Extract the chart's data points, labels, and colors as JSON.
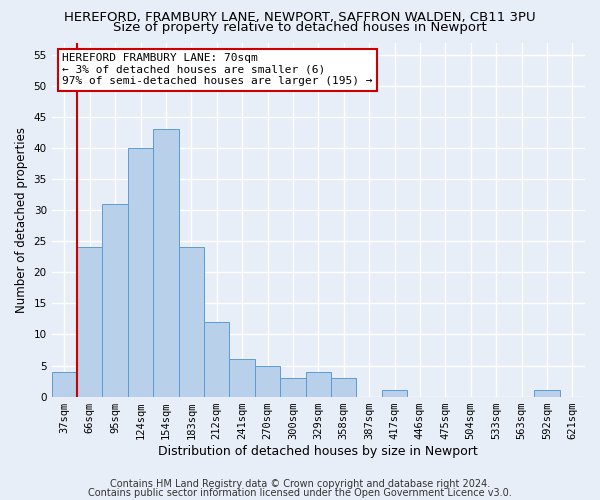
{
  "title1": "HEREFORD, FRAMBURY LANE, NEWPORT, SAFFRON WALDEN, CB11 3PU",
  "title2": "Size of property relative to detached houses in Newport",
  "xlabel": "Distribution of detached houses by size in Newport",
  "ylabel": "Number of detached properties",
  "categories": [
    "37sqm",
    "66sqm",
    "95sqm",
    "124sqm",
    "154sqm",
    "183sqm",
    "212sqm",
    "241sqm",
    "270sqm",
    "300sqm",
    "329sqm",
    "358sqm",
    "387sqm",
    "417sqm",
    "446sqm",
    "475sqm",
    "504sqm",
    "533sqm",
    "563sqm",
    "592sqm",
    "621sqm"
  ],
  "bar_values": [
    4,
    24,
    31,
    40,
    43,
    24,
    12,
    6,
    5,
    3,
    4,
    3,
    0,
    1,
    0,
    0,
    0,
    0,
    0,
    1,
    0
  ],
  "bar_color": "#b8d0ea",
  "bar_edge_color": "#5b9bd5",
  "ylim": [
    0,
    57
  ],
  "yticks": [
    0,
    5,
    10,
    15,
    20,
    25,
    30,
    35,
    40,
    45,
    50,
    55
  ],
  "vline_x": 0.5,
  "vline_color": "#cc0000",
  "annotation_text": "HEREFORD FRAMBURY LANE: 70sqm\n← 3% of detached houses are smaller (6)\n97% of semi-detached houses are larger (195) →",
  "annotation_box_color": "#ffffff",
  "annotation_box_edge": "#cc0000",
  "footer1": "Contains HM Land Registry data © Crown copyright and database right 2024.",
  "footer2": "Contains public sector information licensed under the Open Government Licence v3.0.",
  "bg_color": "#e8eef7",
  "plot_bg_color": "#e8eef7",
  "grid_color": "#ffffff",
  "title1_fontsize": 9.5,
  "title2_fontsize": 9.5,
  "xlabel_fontsize": 9,
  "ylabel_fontsize": 8.5,
  "tick_fontsize": 7.5,
  "footer_fontsize": 7,
  "annot_fontsize": 8
}
